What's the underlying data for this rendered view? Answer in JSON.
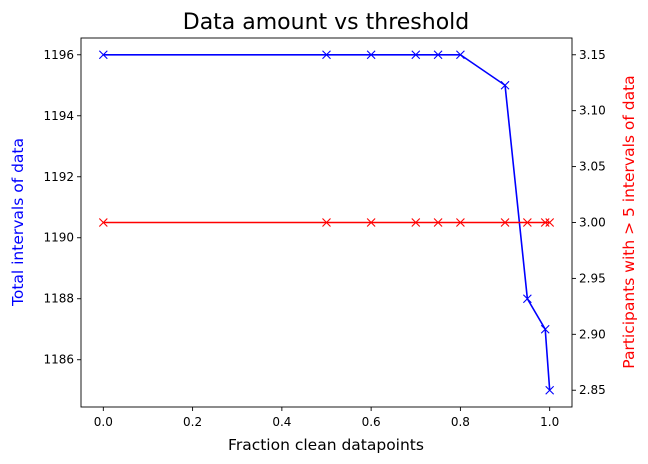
{
  "chart_data": {
    "type": "line",
    "title": "Data amount vs threshold",
    "xlabel": "Fraction clean datapoints",
    "xlim": [
      -0.05,
      1.05
    ],
    "xticks": [
      0.0,
      0.2,
      0.4,
      0.6,
      0.8,
      1.0
    ],
    "xtick_labels": [
      "0.0",
      "0.2",
      "0.4",
      "0.6",
      "0.8",
      "1.0"
    ],
    "x": [
      0.0,
      0.5,
      0.6,
      0.7,
      0.75,
      0.8,
      0.9,
      0.95,
      0.99,
      1.0
    ],
    "grid": false,
    "legend": "none",
    "axes": {
      "left": {
        "label": "Total intervals of data",
        "color": "#0000ff",
        "ylim": [
          1184.45,
          1196.55
        ],
        "ticks": [
          1186,
          1188,
          1190,
          1192,
          1194,
          1196
        ],
        "tick_labels": [
          "1186",
          "1188",
          "1190",
          "1192",
          "1194",
          "1196"
        ]
      },
      "right": {
        "label": "Participants with > 5 intervals of data",
        "color": "#ff0000",
        "ylim": [
          2.835,
          3.165
        ],
        "ticks": [
          2.85,
          2.9,
          2.95,
          3.0,
          3.05,
          3.1,
          3.15
        ],
        "tick_labels": [
          "2.85",
          "2.90",
          "2.95",
          "3.00",
          "3.05",
          "3.10",
          "3.15"
        ]
      }
    },
    "series": [
      {
        "axis": "left",
        "color": "#0000ff",
        "marker": "x",
        "values": [
          1196,
          1196,
          1196,
          1196,
          1196,
          1196,
          1195,
          1188,
          1187,
          1185
        ]
      },
      {
        "axis": "right",
        "color": "#ff0000",
        "marker": "x",
        "values": [
          3.0,
          3.0,
          3.0,
          3.0,
          3.0,
          3.0,
          3.0,
          3.0,
          3.0,
          3.0
        ]
      }
    ]
  }
}
